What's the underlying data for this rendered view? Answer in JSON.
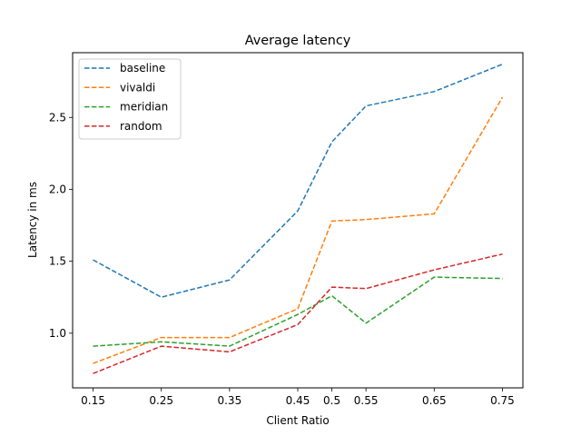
{
  "chart_data": {
    "type": "line",
    "title": "Average latency",
    "xlabel": "Client Ratio",
    "ylabel": "Latency in ms",
    "x": [
      "0.15",
      "0.25",
      "0.35",
      "0.45",
      "0.5",
      "0.55",
      "0.65",
      "0.75"
    ],
    "yticks": [
      "1.0",
      "1.5",
      "2.0",
      "2.5"
    ],
    "ylim": [
      0.62,
      2.95
    ],
    "line_style": "dashed",
    "grid": false,
    "legend_position": "top-left",
    "series": [
      {
        "name": "baseline",
        "color": "#1f77b4",
        "values": [
          1.51,
          1.25,
          1.37,
          1.85,
          2.33,
          2.58,
          2.68,
          2.87
        ]
      },
      {
        "name": "vivaldi",
        "color": "#ff7f0e",
        "values": [
          0.79,
          0.97,
          0.97,
          1.17,
          1.78,
          1.79,
          1.83,
          2.64
        ]
      },
      {
        "name": "meridian",
        "color": "#2ca02c",
        "values": [
          0.91,
          0.94,
          0.91,
          1.13,
          1.26,
          1.07,
          1.39,
          1.38
        ]
      },
      {
        "name": "random",
        "color": "#d62728",
        "values": [
          0.72,
          0.91,
          0.87,
          1.06,
          1.32,
          1.31,
          1.44,
          1.55
        ]
      }
    ]
  }
}
